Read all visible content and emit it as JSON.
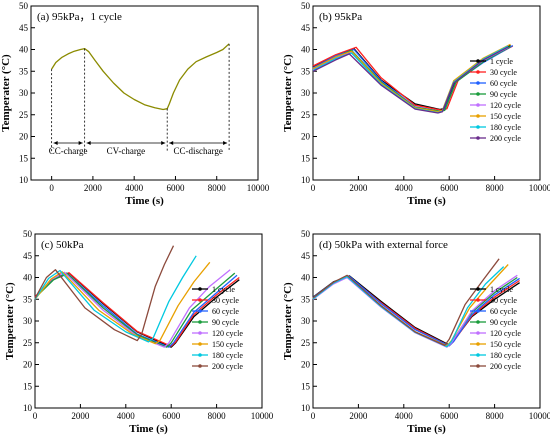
{
  "chart_data": [
    {
      "id": "a",
      "type": "line",
      "title": "(a) 95kPa，1 cycle",
      "xlabel": "Time (s)",
      "ylabel": "Temperater (°C)",
      "xlim": [
        -1000,
        10000
      ],
      "ylim": [
        10,
        50
      ],
      "xticks": [
        0,
        2000,
        4000,
        6000,
        8000,
        10000
      ],
      "yticks": [
        10,
        15,
        20,
        25,
        30,
        35,
        40,
        45,
        50
      ],
      "grid": false,
      "legend": "none",
      "annotations": [
        "CC-charge",
        "CV-charge",
        "CC-discharge"
      ],
      "series": [
        {
          "color": "#8b8b00",
          "x": [
            0,
            200,
            500,
            800,
            1100,
            1400,
            1600,
            1800,
            2100,
            2500,
            3000,
            3500,
            4000,
            4500,
            5000,
            5400,
            5600,
            5700,
            5900,
            6200,
            6600,
            7000,
            7500,
            8000,
            8300,
            8600
          ],
          "y": [
            35.5,
            37,
            38.2,
            39,
            39.6,
            40,
            40.2,
            39.5,
            37.5,
            35,
            32.3,
            30,
            28.5,
            27.3,
            26.6,
            26.2,
            26.4,
            27.5,
            30,
            33,
            35.5,
            37.2,
            38.3,
            39.3,
            40,
            41.3
          ]
        }
      ]
    },
    {
      "id": "b",
      "type": "line",
      "title": "(b) 95kPa",
      "xlabel": "Time (s)",
      "ylabel": "Temperater (°C)",
      "xlim": [
        0,
        10000
      ],
      "ylim": [
        10,
        50
      ],
      "xticks": [
        0,
        2000,
        4000,
        6000,
        8000,
        10000
      ],
      "yticks": [
        10,
        15,
        20,
        25,
        30,
        35,
        40,
        45,
        50
      ],
      "grid": false,
      "legend": "right-center",
      "series": [
        {
          "name": "1 cycle",
          "color": "#000000",
          "x": [
            0,
            1000,
            1800,
            3000,
            4500,
            5600,
            5800,
            6300,
            7500,
            8700
          ],
          "y": [
            36,
            38.5,
            40.2,
            33,
            27.5,
            26.2,
            26.5,
            33,
            37.5,
            41
          ]
        },
        {
          "name": "30 cycle",
          "color": "#ff2020",
          "x": [
            0,
            1000,
            1900,
            3000,
            4500,
            5700,
            5900,
            6400,
            7500,
            8800
          ],
          "y": [
            36.2,
            38.8,
            40.5,
            33.5,
            27.2,
            26,
            26.4,
            33,
            37.2,
            40.8
          ]
        },
        {
          "name": "60 cycle",
          "color": "#2060ff",
          "x": [
            0,
            1000,
            1800,
            3000,
            4500,
            5600,
            5800,
            6300,
            7500,
            8800
          ],
          "y": [
            35.8,
            38.5,
            40,
            32.8,
            26.8,
            25.8,
            26.2,
            32.6,
            37,
            40.9
          ]
        },
        {
          "name": "90 cycle",
          "color": "#1a9c3c",
          "x": [
            0,
            1000,
            1700,
            3000,
            4500,
            5600,
            5800,
            6300,
            7500,
            8700
          ],
          "y": [
            35.5,
            38.2,
            39.8,
            32.5,
            26.7,
            25.8,
            26,
            32.5,
            37.2,
            40.7
          ]
        },
        {
          "name": "120 cycle",
          "color": "#c070ff",
          "x": [
            0,
            1000,
            1700,
            3000,
            4500,
            5500,
            5700,
            6200,
            7500,
            8600
          ],
          "y": [
            35.3,
            38,
            39.5,
            32.2,
            26.5,
            25.6,
            25.9,
            32.4,
            37.5,
            40.5
          ]
        },
        {
          "name": "150 cycle",
          "color": "#e8a000",
          "x": [
            0,
            1000,
            1700,
            3000,
            4500,
            5500,
            5700,
            6200,
            7500,
            8700
          ],
          "y": [
            35.6,
            38.3,
            39.6,
            32.3,
            26.6,
            25.7,
            26,
            32.8,
            38,
            41.2
          ]
        },
        {
          "name": "180 cycle",
          "color": "#00c8e0",
          "x": [
            0,
            1000,
            1700,
            3000,
            4500,
            5500,
            5700,
            6200,
            7500,
            8600
          ],
          "y": [
            35.2,
            37.9,
            39.2,
            32,
            26.4,
            25.5,
            25.8,
            32.5,
            37.8,
            40.8
          ]
        },
        {
          "name": "200 cycle",
          "color": "#6a2c8c",
          "x": [
            0,
            1000,
            1600,
            3000,
            4500,
            5500,
            5700,
            6200,
            7500,
            8600
          ],
          "y": [
            35,
            37.6,
            39,
            31.8,
            26.3,
            25.4,
            25.7,
            32.3,
            37.6,
            40.6
          ]
        }
      ]
    },
    {
      "id": "c",
      "type": "line",
      "title": "(c) 50kPa",
      "xlabel": "Time (s)",
      "ylabel": "Temperater (°C)",
      "xlim": [
        0,
        10000
      ],
      "ylim": [
        10,
        50
      ],
      "xticks": [
        0,
        2000,
        4000,
        6000,
        8000,
        10000
      ],
      "yticks": [
        10,
        15,
        20,
        25,
        30,
        35,
        40,
        45,
        50
      ],
      "grid": false,
      "legend": "right-center",
      "series": [
        {
          "name": "1 cycle",
          "color": "#000000",
          "x": [
            0,
            800,
            1500,
            3000,
            4500,
            6000,
            6200,
            7000,
            8000,
            9000
          ],
          "y": [
            35.5,
            39.5,
            41,
            34,
            27.5,
            24,
            25,
            31,
            35.5,
            39.5
          ]
        },
        {
          "name": "30 cycle",
          "color": "#ff2020",
          "x": [
            0,
            800,
            1500,
            3000,
            4500,
            6000,
            6200,
            7000,
            8000,
            9000
          ],
          "y": [
            35.6,
            39.6,
            41.1,
            34.2,
            27.6,
            24.2,
            25.2,
            31.5,
            36,
            40
          ]
        },
        {
          "name": "60 cycle",
          "color": "#2060ff",
          "x": [
            0,
            800,
            1400,
            3000,
            4500,
            5900,
            6100,
            7000,
            8000,
            8900
          ],
          "y": [
            35.4,
            39.5,
            41,
            33.5,
            27,
            24,
            25,
            32,
            36.5,
            40.5
          ]
        },
        {
          "name": "90 cycle",
          "color": "#1a9c3c",
          "x": [
            0,
            800,
            1400,
            3000,
            4500,
            5800,
            6000,
            6900,
            7900,
            8800
          ],
          "y": [
            35.3,
            39.4,
            41,
            33,
            26.8,
            24,
            25,
            32.5,
            37,
            41
          ]
        },
        {
          "name": "120 cycle",
          "color": "#c070ff",
          "x": [
            0,
            700,
            1300,
            3000,
            4500,
            5700,
            5900,
            6800,
            7700,
            8600
          ],
          "y": [
            35.2,
            39.5,
            41.2,
            32.5,
            26.5,
            24,
            25,
            33,
            38,
            41.8
          ]
        },
        {
          "name": "150 cycle",
          "color": "#e8a000",
          "x": [
            0,
            700,
            1200,
            2800,
            4300,
            5300,
            5500,
            6300,
            7000,
            7700
          ],
          "y": [
            35,
            39.6,
            41.3,
            32.5,
            27,
            24.8,
            25.5,
            33.5,
            39,
            43.5
          ]
        },
        {
          "name": "180 cycle",
          "color": "#00c8e0",
          "x": [
            0,
            600,
            1100,
            2600,
            4000,
            5000,
            5200,
            5900,
            6500,
            7100
          ],
          "y": [
            35,
            39.8,
            41.6,
            32.5,
            27.5,
            25.2,
            26,
            34.5,
            40,
            45
          ]
        },
        {
          "name": "200 cycle",
          "color": "#8c4a3c",
          "x": [
            0,
            500,
            900,
            2200,
            3500,
            4500,
            4700,
            5300,
            5700,
            6100
          ],
          "y": [
            35.2,
            40,
            41.8,
            33,
            28,
            25.5,
            27,
            38,
            43,
            47.3
          ]
        }
      ]
    },
    {
      "id": "d",
      "type": "line",
      "title": "(d) 50kPa with external force",
      "xlabel": "Time (s)",
      "ylabel": "Temperater (°C)",
      "xlim": [
        0,
        10000
      ],
      "ylim": [
        10,
        50
      ],
      "xticks": [
        0,
        2000,
        4000,
        6000,
        8000,
        10000
      ],
      "yticks": [
        10,
        15,
        20,
        25,
        30,
        35,
        40,
        45,
        50
      ],
      "grid": false,
      "legend": "right-center",
      "series": [
        {
          "name": "1 cycle",
          "color": "#000000",
          "x": [
            0,
            900,
            1600,
            3000,
            4500,
            6000,
            6200,
            7000,
            8000,
            9100
          ],
          "y": [
            35.5,
            39,
            40.4,
            34.5,
            28.5,
            24.5,
            25.5,
            31,
            35,
            38.8
          ]
        },
        {
          "name": "30 cycle",
          "color": "#ff2020",
          "x": [
            0,
            900,
            1600,
            3000,
            4500,
            6000,
            6200,
            7000,
            8000,
            9100
          ],
          "y": [
            35.3,
            38.8,
            40.2,
            34.2,
            28.3,
            24.3,
            25.3,
            31.2,
            35.5,
            39.3
          ]
        },
        {
          "name": "60 cycle",
          "color": "#2060ff",
          "x": [
            0,
            900,
            1600,
            3000,
            4500,
            6000,
            6200,
            7000,
            8000,
            9100
          ],
          "y": [
            35.4,
            38.9,
            40.3,
            34,
            28,
            24.3,
            25.3,
            31.5,
            36,
            39.8
          ]
        },
        {
          "name": "90 cycle",
          "color": "#1a9c3c",
          "x": [
            0,
            900,
            1500,
            3000,
            4500,
            5900,
            6100,
            7000,
            8000,
            9000
          ],
          "y": [
            35.2,
            38.7,
            40.1,
            33.5,
            27.5,
            24.2,
            25.2,
            32,
            36.5,
            40
          ]
        },
        {
          "name": "120 cycle",
          "color": "#c070ff",
          "x": [
            0,
            900,
            1500,
            3000,
            4500,
            5900,
            6100,
            7000,
            8000,
            9000
          ],
          "y": [
            35,
            38.5,
            40,
            33.2,
            27.3,
            24,
            25,
            32.3,
            37,
            40.5
          ]
        },
        {
          "name": "150 cycle",
          "color": "#e8a000",
          "x": [
            0,
            900,
            1500,
            3000,
            4500,
            5900,
            6100,
            6900,
            7800,
            8600
          ],
          "y": [
            35.2,
            38.8,
            40.3,
            33.5,
            27.5,
            24.3,
            25.5,
            33,
            38.5,
            43
          ]
        },
        {
          "name": "180 cycle",
          "color": "#00c8e0",
          "x": [
            0,
            900,
            1500,
            3000,
            4500,
            5900,
            6100,
            6800,
            7600,
            8400
          ],
          "y": [
            35.1,
            38.7,
            40.2,
            33.3,
            27.4,
            24.1,
            25.3,
            33,
            38.5,
            42.5
          ]
        },
        {
          "name": "200 cycle",
          "color": "#8c4a3c",
          "x": [
            0,
            900,
            1500,
            3000,
            4500,
            5800,
            6000,
            6700,
            7500,
            8200
          ],
          "y": [
            35.3,
            38.9,
            40.5,
            33.5,
            27.5,
            24.4,
            25.8,
            33.8,
            39.5,
            44.3
          ]
        }
      ]
    }
  ]
}
